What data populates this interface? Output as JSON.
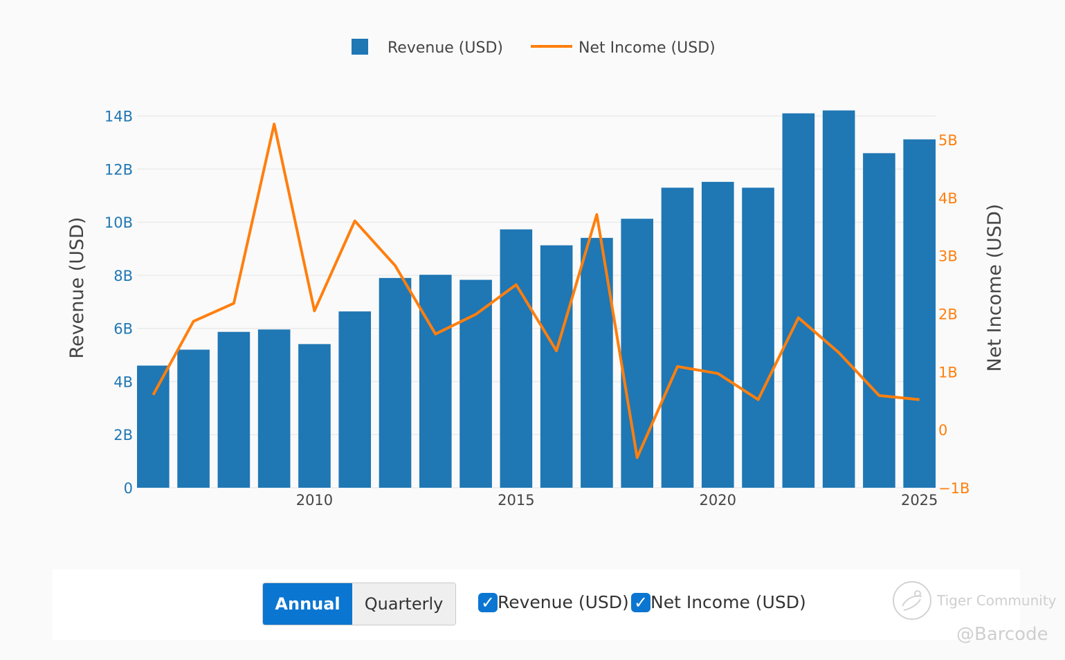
{
  "chart_data": {
    "type": "bar",
    "x": [
      2006,
      2007,
      2008,
      2009,
      2010,
      2011,
      2012,
      2013,
      2014,
      2015,
      2016,
      2017,
      2018,
      2019,
      2020,
      2021,
      2022,
      2023,
      2024,
      2025
    ],
    "series": [
      {
        "name": "Revenue (USD)",
        "type": "bar",
        "axis": "left",
        "color": "#1f77b4",
        "values": [
          4.6,
          5.2,
          5.87,
          5.96,
          5.41,
          6.64,
          7.9,
          8.02,
          7.83,
          9.73,
          9.13,
          9.41,
          10.13,
          11.3,
          11.52,
          11.3,
          14.1,
          14.21,
          12.6,
          13.12
        ]
      },
      {
        "name": "Net Income (USD)",
        "type": "line",
        "axis": "right",
        "color": "#ff7f0e",
        "values": [
          0.6,
          1.87,
          2.18,
          5.27,
          2.05,
          3.6,
          2.83,
          1.65,
          1.99,
          2.5,
          1.36,
          3.71,
          -0.48,
          1.09,
          0.97,
          0.52,
          1.93,
          1.33,
          0.59,
          0.52
        ]
      }
    ],
    "ylabel": "Revenue (USD)",
    "y2label": "Net Income (USD)",
    "xlabel": "",
    "ylim": [
      0,
      14.2
    ],
    "y2lim": [
      -1,
      5.5
    ],
    "xlim": [
      2005.6,
      2025.4
    ],
    "xticks": [
      2010,
      2015,
      2020,
      2025
    ],
    "yticks": [
      0,
      2,
      4,
      6,
      8,
      10,
      12,
      14
    ],
    "yticklabels": [
      "0",
      "2B",
      "4B",
      "6B",
      "8B",
      "10B",
      "12B",
      "14B"
    ],
    "y2ticks": [
      -1,
      0,
      1,
      2,
      3,
      4,
      5
    ],
    "y2ticklabels": [
      "−1B",
      "0",
      "1B",
      "2B",
      "3B",
      "4B",
      "5B"
    ],
    "grid": true,
    "legend_position": "top-center"
  },
  "controls": {
    "period_options": [
      "Annual",
      "Quarterly"
    ],
    "selected_period": "Annual",
    "checkboxes": [
      {
        "label": "Revenue (USD)",
        "checked": true
      },
      {
        "label": "Net Income (USD)",
        "checked": true
      }
    ],
    "checkmark": "✓"
  },
  "watermark": {
    "brand": "Tiger Community",
    "handle": "@Barcode",
    "icon": "tiger-logo-icon"
  }
}
